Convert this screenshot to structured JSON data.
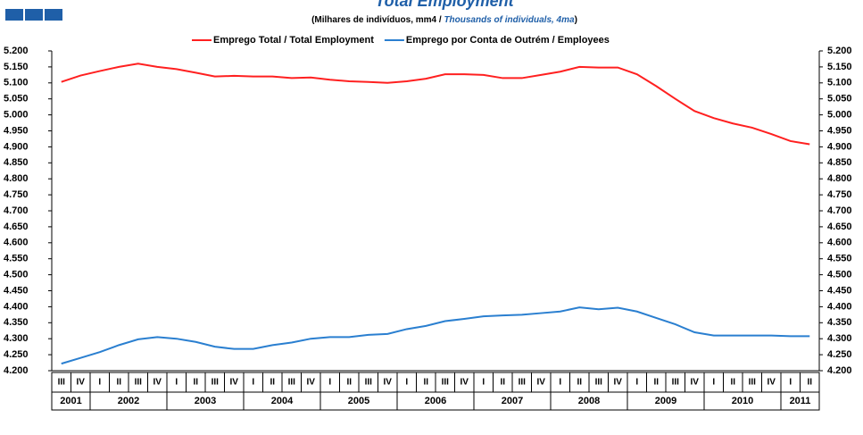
{
  "chart_data": {
    "type": "line",
    "title": "Total Employment",
    "subtitle": [
      "(Milhares de indivíduos, mm4 / ",
      "Thousands of individuals, 4ma",
      ")"
    ],
    "categories": [
      "III",
      "IV",
      "I",
      "II",
      "III",
      "IV",
      "I",
      "II",
      "III",
      "IV",
      "I",
      "II",
      "III",
      "IV",
      "I",
      "II",
      "III",
      "IV",
      "I",
      "II",
      "III",
      "IV",
      "I",
      "II",
      "III",
      "IV",
      "I",
      "II",
      "III",
      "IV",
      "I",
      "II",
      "III",
      "IV",
      "I",
      "II",
      "III",
      "IV",
      "I",
      "II"
    ],
    "years": [
      "2001",
      "2002",
      "2003",
      "2004",
      "2005",
      "2006",
      "2007",
      "2008",
      "2009",
      "2010",
      "2011"
    ],
    "series": [
      {
        "name": "Emprego Total / Total Employment",
        "color": "#ff2020",
        "values": [
          5103,
          5123,
          5137,
          5150,
          5160,
          5150,
          5143,
          5132,
          5120,
          5122,
          5120,
          5120,
          5115,
          5117,
          5110,
          5105,
          5103,
          5100,
          5105,
          5113,
          5127,
          5127,
          5125,
          5115,
          5115,
          5125,
          5135,
          5150,
          5148,
          5148,
          5127,
          5090,
          5050,
          5012,
          4990,
          4973,
          4960,
          4940,
          4918,
          4908
        ]
      },
      {
        "name": "Emprego por Conta de Outrém / Employees",
        "color": "#2a7fd0",
        "values": [
          4222,
          4240,
          4258,
          4280,
          4298,
          4305,
          4300,
          4290,
          4275,
          4268,
          4268,
          4280,
          4288,
          4300,
          4305,
          4305,
          4312,
          4315,
          4330,
          4340,
          4355,
          4362,
          4370,
          4373,
          4375,
          4380,
          4385,
          4398,
          4392,
          4397,
          4385,
          4365,
          4345,
          4320,
          4310,
          4310,
          4310,
          4310,
          4308,
          4308
        ]
      }
    ],
    "ylim": [
      4200,
      5200
    ],
    "yticks": [
      {
        "value": 4200,
        "label": "4.200"
      },
      {
        "value": 4250,
        "label": "4.250"
      },
      {
        "value": 4300,
        "label": "4.300"
      },
      {
        "value": 4350,
        "label": "4.350"
      },
      {
        "value": 4400,
        "label": "4.400"
      },
      {
        "value": 4450,
        "label": "4.450"
      },
      {
        "value": 4500,
        "label": "4.500"
      },
      {
        "value": 4550,
        "label": "4.550"
      },
      {
        "value": 4600,
        "label": "4.600"
      },
      {
        "value": 4650,
        "label": "4.650"
      },
      {
        "value": 4700,
        "label": "4.700"
      },
      {
        "value": 4750,
        "label": "4.750"
      },
      {
        "value": 4800,
        "label": "4.800"
      },
      {
        "value": 4850,
        "label": "4.850"
      },
      {
        "value": 4900,
        "label": "4.900"
      },
      {
        "value": 4950,
        "label": "4.950"
      },
      {
        "value": 5000,
        "label": "5.000"
      },
      {
        "value": 5050,
        "label": "5.050"
      },
      {
        "value": 5100,
        "label": "5.100"
      },
      {
        "value": 5150,
        "label": "5.150"
      },
      {
        "value": 5200,
        "label": "5.200"
      }
    ],
    "legend": "top"
  }
}
